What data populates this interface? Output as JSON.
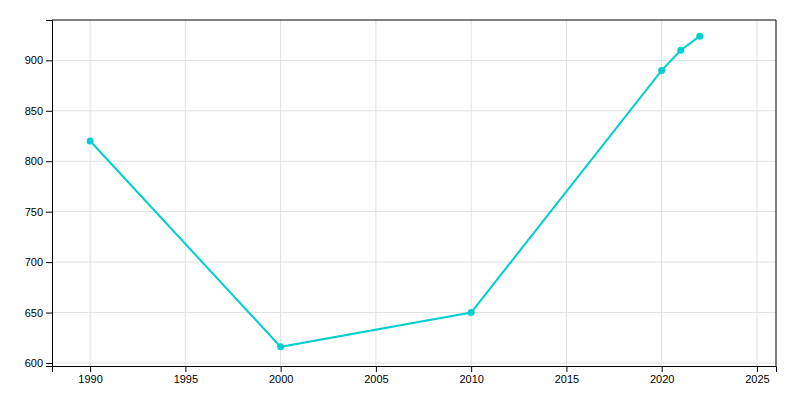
{
  "chart_data": {
    "type": "line",
    "x": [
      1990,
      2000,
      2010,
      2020,
      2021,
      2022
    ],
    "values": [
      820,
      616,
      650,
      890,
      910,
      924
    ],
    "color": "#00CED1",
    "marker": "circle",
    "xlim": [
      1988,
      2026
    ],
    "ylim": [
      597,
      940
    ],
    "xticks": [
      1990,
      1995,
      2000,
      2005,
      2010,
      2015,
      2020,
      2025
    ],
    "yticks": [
      600,
      650,
      700,
      750,
      800,
      850,
      900
    ],
    "grid": true
  }
}
